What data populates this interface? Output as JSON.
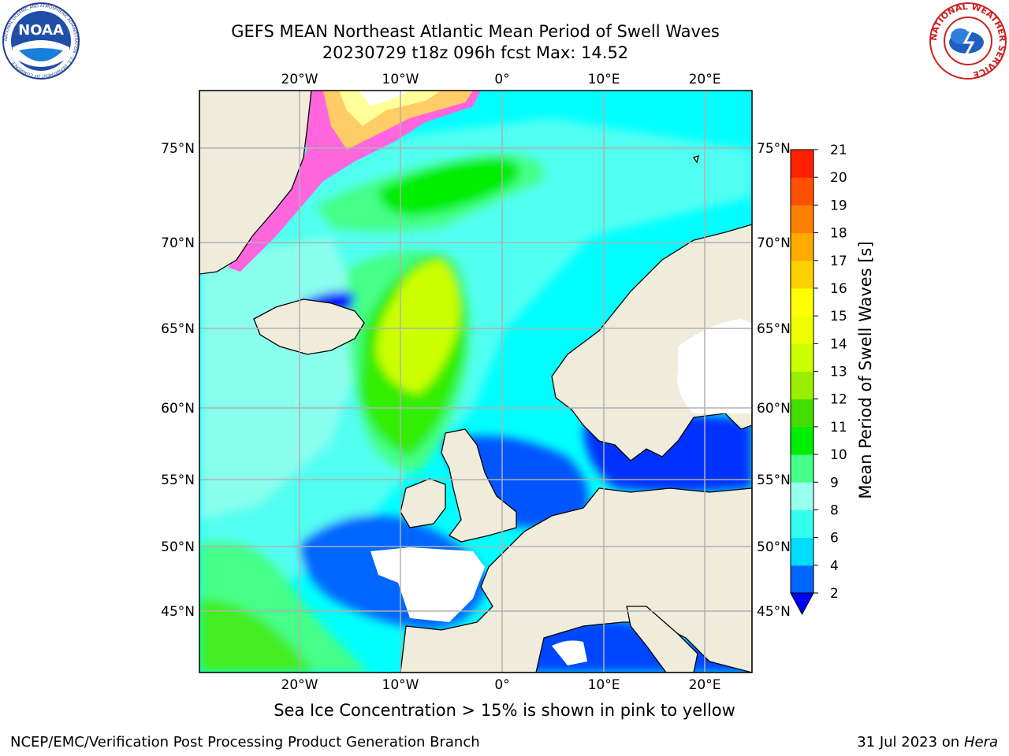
{
  "header": {
    "title_line1": "GEFS MEAN Northeast Atlantic Mean Period of Swell Waves",
    "title_line2": "20230729 t18z 096h fcst   Max: 14.52"
  },
  "logos": {
    "noaa_text": "NOAA",
    "noaa_ring_text": "NATIONAL OCEANIC AND ATMOSPHERIC ADMINISTRATION · U.S. DEPARTMENT OF COMMERCE",
    "nws_ring_text": "NATIONAL WEATHER SERVICE"
  },
  "map": {
    "lon_ticks": [
      "20°W",
      "10°W",
      "0°",
      "10°E",
      "20°E"
    ],
    "lat_ticks": [
      "75°N",
      "70°N",
      "65°N",
      "60°N",
      "55°N",
      "50°N",
      "45°N"
    ],
    "land_color": "#efecdc",
    "ocean_base_color": "#00ffff",
    "grid_color": "#b0b0b0"
  },
  "colorbar": {
    "label": "Mean Period of Swell Waves [s]",
    "ticks": [
      "2",
      "4",
      "6",
      "8",
      "9",
      "10",
      "11",
      "12",
      "13",
      "14",
      "15",
      "16",
      "17",
      "18",
      "19",
      "20",
      "21"
    ],
    "colors": [
      "#0066ff",
      "#00ddff",
      "#33ffee",
      "#99ffee",
      "#44ff88",
      "#00ee00",
      "#44dd00",
      "#99ee00",
      "#ccff00",
      "#eeff00",
      "#ffff00",
      "#ffd000",
      "#ffaa00",
      "#ff8000",
      "#ff5000",
      "#ff2000"
    ],
    "extend_min_color": "#0000ff"
  },
  "caption": "Sea Ice Concentration > 15% is shown in pink to yellow",
  "footer": {
    "left": "NCEP/EMC/Verification Post Processing Product Generation Branch",
    "date": "31 Jul 2023 on ",
    "host": "Hera"
  }
}
